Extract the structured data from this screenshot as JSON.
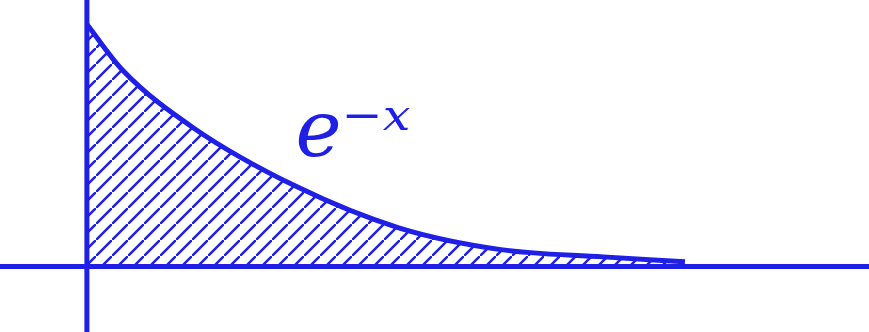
{
  "chart_data": {
    "type": "line",
    "x": [
      0,
      0.35,
      1.05,
      2.05,
      3.05,
      4.05,
      5.05,
      5.85
    ],
    "values": [
      1.0,
      0.81,
      0.57,
      0.33,
      0.16,
      0.07,
      0.04,
      0.02
    ],
    "color": "#1f1fe6",
    "xlim": [
      -0.85,
      7.65
    ],
    "ylim": [
      -0.27,
      1.1
    ],
    "annotations": [
      {
        "text": "e⁻ˣ"
      }
    ],
    "grid": false,
    "tick_labels": false
  }
}
